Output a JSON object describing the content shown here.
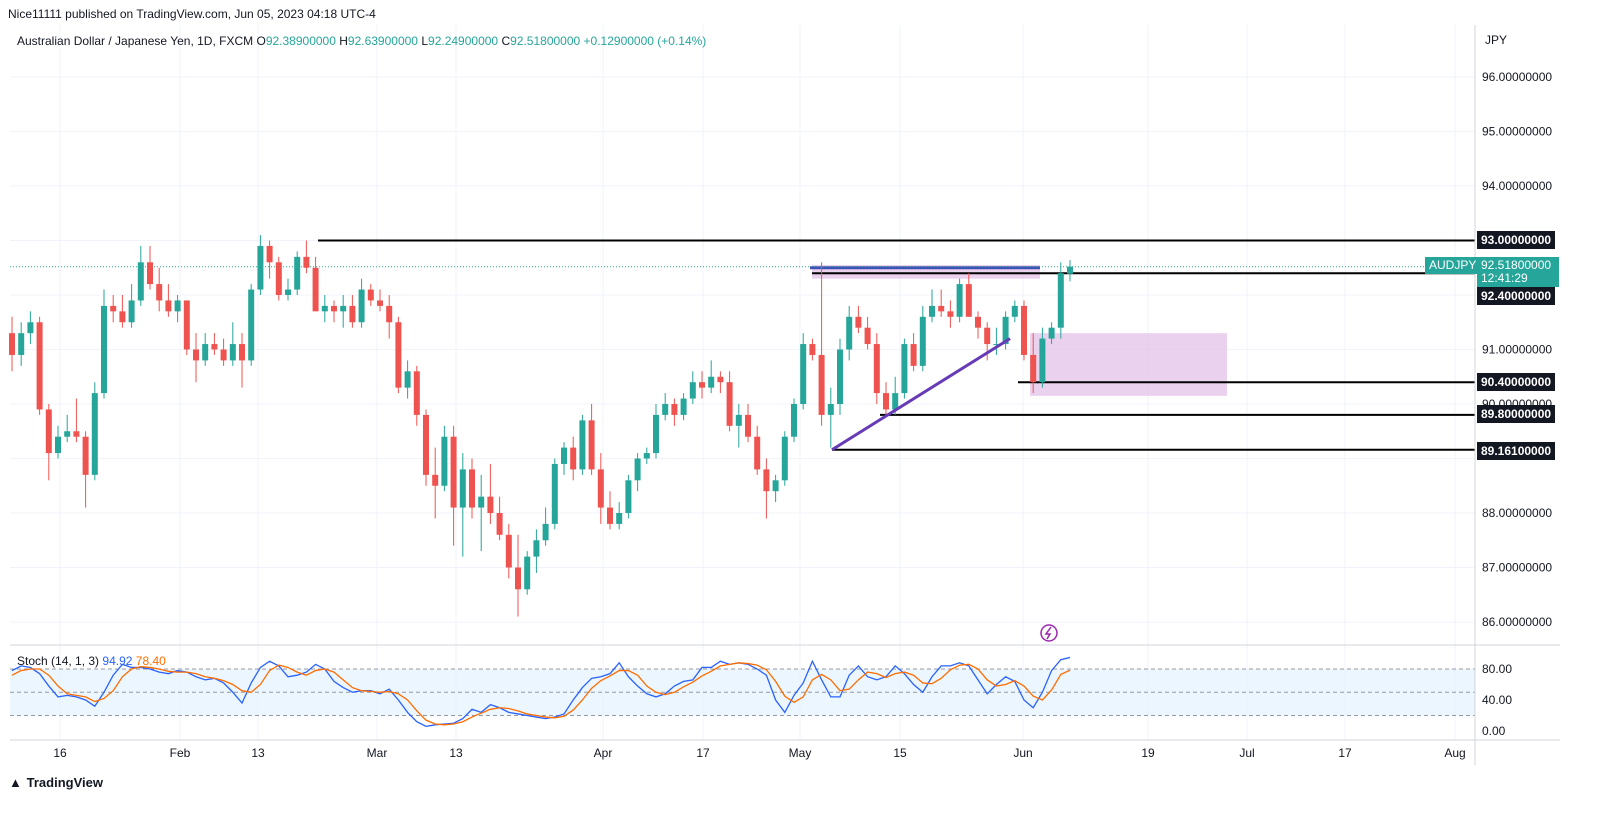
{
  "publish_line": "Nice11111 published on TradingView.com, Jun 05, 2023 04:18 UTC-4",
  "instrument": {
    "name": "Australian Dollar / Japanese Yen, 1D, FXCM",
    "o_label": "O",
    "o": "92.38900000",
    "h_label": "H",
    "h": "92.63900000",
    "l_label": "L",
    "l": "92.24900000",
    "c_label": "C",
    "c": "92.51800000",
    "change": "+0.12900000 (+0.14%)"
  },
  "currency": "JPY",
  "symbol_tag": "AUDJPY",
  "last_price": "92.51800000",
  "countdown": "12:41:29",
  "footer_brand": "TradingView",
  "stoch": {
    "label": "Stoch (14, 1, 3)",
    "k": "94.92",
    "d": "78.40"
  },
  "colors": {
    "up": "#26a69a",
    "down": "#ef5350",
    "k_line": "#2962ff",
    "d_line": "#ff6d00",
    "zone": "#e1bee7",
    "trendline": "#673ab7"
  },
  "chart_data": {
    "type": "candlestick",
    "y_axis_ticks": [
      "96.00000000",
      "95.00000000",
      "94.00000000",
      "91.00000000",
      "90.00000000",
      "88.00000000",
      "87.00000000",
      "86.00000000"
    ],
    "x_axis_ticks": [
      "16",
      "Feb",
      "13",
      "Mar",
      "13",
      "Apr",
      "17",
      "May",
      "15",
      "Jun",
      "19",
      "Jul",
      "17",
      "Aug"
    ],
    "ylim": [
      85.7,
      97.0
    ],
    "levels": [
      {
        "price": 93.0,
        "label": "93.00000000"
      },
      {
        "price": 92.4,
        "label": "92.40000000"
      },
      {
        "price": 90.4,
        "label": "90.40000000"
      },
      {
        "price": 89.8,
        "label": "89.80000000"
      },
      {
        "price": 89.161,
        "label": "89.16100000"
      }
    ],
    "stoch_ticks": [
      "80.00",
      "40.00",
      "0.00"
    ],
    "stoch_band": [
      20,
      80
    ],
    "candles": [
      [
        91.3,
        91.6,
        90.6,
        90.9
      ],
      [
        90.9,
        91.5,
        90.7,
        91.3
      ],
      [
        91.3,
        91.7,
        91.1,
        91.5
      ],
      [
        91.5,
        91.6,
        89.8,
        89.9
      ],
      [
        89.9,
        90.0,
        88.6,
        89.1
      ],
      [
        89.1,
        89.6,
        89.0,
        89.4
      ],
      [
        89.4,
        89.8,
        89.3,
        89.5
      ],
      [
        89.5,
        90.1,
        89.3,
        89.4
      ],
      [
        89.4,
        89.5,
        88.1,
        88.7
      ],
      [
        88.7,
        90.4,
        88.6,
        90.2
      ],
      [
        90.2,
        92.1,
        90.1,
        91.8
      ],
      [
        91.8,
        92.0,
        91.5,
        91.7
      ],
      [
        91.7,
        92.0,
        91.4,
        91.5
      ],
      [
        91.5,
        92.2,
        91.4,
        91.9
      ],
      [
        91.9,
        92.9,
        91.8,
        92.6
      ],
      [
        92.6,
        92.9,
        92.1,
        92.2
      ],
      [
        92.2,
        92.5,
        91.7,
        91.9
      ],
      [
        91.9,
        92.2,
        91.6,
        91.7
      ],
      [
        91.7,
        92.0,
        91.5,
        91.9
      ],
      [
        91.9,
        91.9,
        90.9,
        91.0
      ],
      [
        91.0,
        91.3,
        90.4,
        90.8
      ],
      [
        90.8,
        91.3,
        90.7,
        91.1
      ],
      [
        91.1,
        91.3,
        90.9,
        91.0
      ],
      [
        91.0,
        91.2,
        90.7,
        90.8
      ],
      [
        90.8,
        91.5,
        90.7,
        91.1
      ],
      [
        91.1,
        91.3,
        90.3,
        90.8
      ],
      [
        90.8,
        92.2,
        90.7,
        92.1
      ],
      [
        92.1,
        93.1,
        92.0,
        92.9
      ],
      [
        92.9,
        93.0,
        92.3,
        92.6
      ],
      [
        92.6,
        92.7,
        91.9,
        92.0
      ],
      [
        92.0,
        92.3,
        91.9,
        92.1
      ],
      [
        92.1,
        92.8,
        92.0,
        92.7
      ],
      [
        92.7,
        93.0,
        92.4,
        92.5
      ],
      [
        92.5,
        92.7,
        91.8,
        91.7
      ],
      [
        91.7,
        92.0,
        91.5,
        91.8
      ],
      [
        91.8,
        91.9,
        91.5,
        91.7
      ],
      [
        91.7,
        92.0,
        91.4,
        91.8
      ],
      [
        91.8,
        92.0,
        91.4,
        91.5
      ],
      [
        91.5,
        92.3,
        91.4,
        92.1
      ],
      [
        92.1,
        92.2,
        91.8,
        91.9
      ],
      [
        91.9,
        92.1,
        91.7,
        91.8
      ],
      [
        91.8,
        92.0,
        91.2,
        91.5
      ],
      [
        91.5,
        91.6,
        90.2,
        90.3
      ],
      [
        90.3,
        90.8,
        90.1,
        90.6
      ],
      [
        90.6,
        90.7,
        89.6,
        89.8
      ],
      [
        89.8,
        89.9,
        88.5,
        88.7
      ],
      [
        88.7,
        89.2,
        87.9,
        88.5
      ],
      [
        88.5,
        89.6,
        88.4,
        89.4
      ],
      [
        89.4,
        89.6,
        87.4,
        88.1
      ],
      [
        88.1,
        89.1,
        87.2,
        88.8
      ],
      [
        88.8,
        89.0,
        87.9,
        88.1
      ],
      [
        88.1,
        88.7,
        87.3,
        88.3
      ],
      [
        88.3,
        88.9,
        87.8,
        88.0
      ],
      [
        88.0,
        88.3,
        87.5,
        87.6
      ],
      [
        87.6,
        87.8,
        86.8,
        87.0
      ],
      [
        87.0,
        87.6,
        86.1,
        86.6
      ],
      [
        86.6,
        87.3,
        86.5,
        87.2
      ],
      [
        87.2,
        87.7,
        86.9,
        87.5
      ],
      [
        87.5,
        88.1,
        87.4,
        87.8
      ],
      [
        87.8,
        89.0,
        87.7,
        88.9
      ],
      [
        88.9,
        89.3,
        88.7,
        89.2
      ],
      [
        89.2,
        89.4,
        88.6,
        88.8
      ],
      [
        88.8,
        89.8,
        88.7,
        89.7
      ],
      [
        89.7,
        90.0,
        88.7,
        88.8
      ],
      [
        88.8,
        89.1,
        87.8,
        88.1
      ],
      [
        88.1,
        88.4,
        87.7,
        87.8
      ],
      [
        87.8,
        88.2,
        87.7,
        88.0
      ],
      [
        88.0,
        88.7,
        87.9,
        88.6
      ],
      [
        88.6,
        89.1,
        88.4,
        89.0
      ],
      [
        89.0,
        89.2,
        88.9,
        89.1
      ],
      [
        89.1,
        90.0,
        89.0,
        89.8
      ],
      [
        89.8,
        90.2,
        89.7,
        90.0
      ],
      [
        90.0,
        90.1,
        89.6,
        89.8
      ],
      [
        89.8,
        90.2,
        89.7,
        90.1
      ],
      [
        90.1,
        90.6,
        90.0,
        90.4
      ],
      [
        90.4,
        90.6,
        90.1,
        90.3
      ],
      [
        90.3,
        90.8,
        90.2,
        90.5
      ],
      [
        90.5,
        90.6,
        90.2,
        90.4
      ],
      [
        90.4,
        90.6,
        89.5,
        89.6
      ],
      [
        89.6,
        90.0,
        89.2,
        89.8
      ],
      [
        89.8,
        90.0,
        89.3,
        89.4
      ],
      [
        89.4,
        89.6,
        88.7,
        88.8
      ],
      [
        88.8,
        89.0,
        87.9,
        88.4
      ],
      [
        88.4,
        88.7,
        88.2,
        88.6
      ],
      [
        88.6,
        89.5,
        88.5,
        89.4
      ],
      [
        89.4,
        90.1,
        89.3,
        90.0
      ],
      [
        90.0,
        91.3,
        89.9,
        91.1
      ],
      [
        91.1,
        91.2,
        90.8,
        90.9
      ],
      [
        90.9,
        92.6,
        89.6,
        89.8
      ],
      [
        89.8,
        90.3,
        89.2,
        90.0
      ],
      [
        90.0,
        91.2,
        89.8,
        91.0
      ],
      [
        91.0,
        91.8,
        90.8,
        91.6
      ],
      [
        91.6,
        91.8,
        91.3,
        91.4
      ],
      [
        91.4,
        91.6,
        91.0,
        91.1
      ],
      [
        91.1,
        91.3,
        90.0,
        90.2
      ],
      [
        90.2,
        90.4,
        89.8,
        89.9
      ],
      [
        89.9,
        90.5,
        89.8,
        90.2
      ],
      [
        90.2,
        91.2,
        90.1,
        91.1
      ],
      [
        91.1,
        91.3,
        90.6,
        90.7
      ],
      [
        90.7,
        91.8,
        90.6,
        91.6
      ],
      [
        91.6,
        92.1,
        91.5,
        91.8
      ],
      [
        91.8,
        92.1,
        91.6,
        91.7
      ],
      [
        91.7,
        91.9,
        91.4,
        91.6
      ],
      [
        91.6,
        92.3,
        91.5,
        92.2
      ],
      [
        92.2,
        92.4,
        91.6,
        91.6
      ],
      [
        91.6,
        91.7,
        91.2,
        91.4
      ],
      [
        91.4,
        91.5,
        90.8,
        91.1
      ],
      [
        91.1,
        91.4,
        90.9,
        91.1
      ],
      [
        91.1,
        91.7,
        91.0,
        91.6
      ],
      [
        91.6,
        91.9,
        91.5,
        91.8
      ],
      [
        91.8,
        91.9,
        90.8,
        90.9
      ],
      [
        90.9,
        91.3,
        90.2,
        90.4
      ],
      [
        90.4,
        91.4,
        90.3,
        91.2
      ],
      [
        91.2,
        91.5,
        91.1,
        91.4
      ],
      [
        91.4,
        92.6,
        91.2,
        92.4
      ],
      [
        92.39,
        92.64,
        92.25,
        92.52
      ]
    ],
    "stoch_k": [
      78,
      84,
      82,
      74,
      58,
      44,
      46,
      44,
      40,
      32,
      50,
      72,
      86,
      82,
      82,
      80,
      76,
      74,
      78,
      76,
      70,
      66,
      68,
      62,
      50,
      36,
      62,
      82,
      90,
      84,
      70,
      72,
      76,
      86,
      80,
      64,
      56,
      50,
      52,
      52,
      48,
      54,
      40,
      24,
      12,
      6,
      8,
      9,
      10,
      16,
      28,
      24,
      34,
      30,
      24,
      22,
      20,
      18,
      16,
      18,
      22,
      40,
      56,
      68,
      70,
      74,
      88,
      70,
      58,
      48,
      44,
      48,
      58,
      64,
      66,
      82,
      82,
      90,
      86,
      88,
      86,
      80,
      72,
      40,
      24,
      46,
      62,
      90,
      66,
      44,
      44,
      72,
      84,
      70,
      66,
      70,
      84,
      74,
      60,
      50,
      70,
      84,
      84,
      88,
      84,
      66,
      48,
      60,
      70,
      64,
      40,
      30,
      50,
      78,
      92,
      94.92
    ],
    "stoch_d": [
      72,
      78,
      80,
      80,
      72,
      58,
      48,
      46,
      44,
      38,
      42,
      52,
      70,
      80,
      83,
      82,
      80,
      77,
      76,
      76,
      74,
      70,
      68,
      65,
      60,
      52,
      50,
      60,
      78,
      85,
      82,
      76,
      72,
      78,
      80,
      76,
      66,
      56,
      52,
      51,
      50,
      51,
      48,
      40,
      26,
      14,
      9,
      8,
      9,
      12,
      18,
      23,
      28,
      30,
      29,
      26,
      22,
      20,
      18,
      17,
      19,
      27,
      40,
      55,
      65,
      71,
      78,
      78,
      72,
      58,
      50,
      47,
      50,
      57,
      63,
      71,
      77,
      84,
      86,
      88,
      87,
      85,
      79,
      64,
      45,
      37,
      44,
      66,
      73,
      66,
      52,
      54,
      66,
      76,
      74,
      69,
      74,
      76,
      72,
      62,
      61,
      68,
      79,
      85,
      86,
      80,
      66,
      58,
      60,
      65,
      58,
      45,
      40,
      53,
      73,
      78.4
    ]
  }
}
